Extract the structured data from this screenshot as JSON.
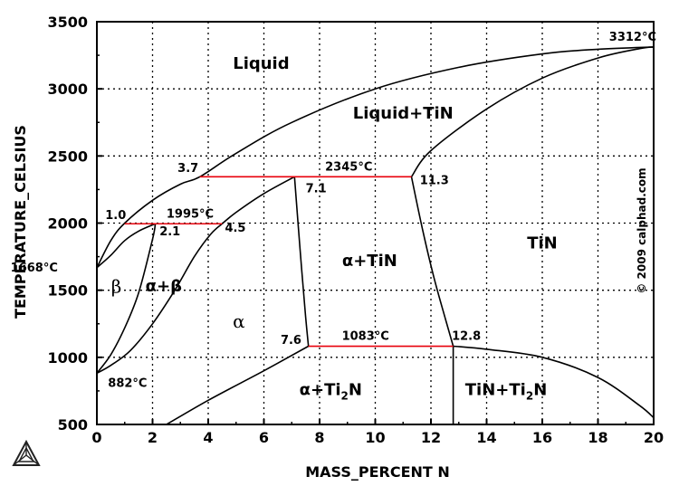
{
  "chart_data": {
    "type": "line",
    "xlabel": "MASS_PERCENT N",
    "ylabel": "TEMPERATURE_CELSIUS",
    "xlim": [
      0,
      20
    ],
    "ylim": [
      500,
      3500
    ],
    "xticks": [
      "0",
      "2",
      "4",
      "6",
      "8",
      "10",
      "12",
      "14",
      "16",
      "18",
      "20"
    ],
    "yticks": [
      "500",
      "1000",
      "1500",
      "2000",
      "2500",
      "3000",
      "3500"
    ],
    "grid": true,
    "credit": "© 2009 calphad.com",
    "phase_boundaries": [
      {
        "name": "liquidus",
        "x": [
          0,
          0.5,
          1.0,
          2,
          3,
          3.7,
          5,
          7,
          10,
          13,
          16,
          18,
          20
        ],
        "y": [
          1668,
          1870,
          2000,
          2170,
          2290,
          2345,
          2520,
          2750,
          3000,
          3160,
          3260,
          3295,
          3312
        ]
      },
      {
        "name": "liquid-tin",
        "x": [
          11.3,
          12,
          14,
          16,
          18,
          19.5,
          20
        ],
        "y": [
          2345,
          2540,
          2850,
          3080,
          3230,
          3300,
          3312
        ]
      },
      {
        "name": "beta-solidus",
        "x": [
          0,
          0.5,
          1,
          1.5,
          2.1
        ],
        "y": [
          1668,
          1760,
          1870,
          1940,
          1995
        ]
      },
      {
        "name": "beta-transus",
        "x": [
          0,
          0.5,
          1,
          1.5,
          2.0,
          2.1
        ],
        "y": [
          882,
          1020,
          1220,
          1480,
          1880,
          1995
        ]
      },
      {
        "name": "alpha-beta",
        "x": [
          0,
          0.5,
          1.2,
          2.0,
          2.8,
          3.5,
          4.1,
          4.5
        ],
        "y": [
          882,
          940,
          1050,
          1250,
          1500,
          1750,
          1920,
          1995
        ]
      },
      {
        "name": "alpha-solidus",
        "x": [
          4.5,
          5,
          6,
          7.1
        ],
        "y": [
          1995,
          2080,
          2220,
          2345
        ]
      },
      {
        "name": "alpha-tin-left",
        "x": [
          7.1,
          7.3,
          7.5,
          7.6
        ],
        "y": [
          2345,
          1800,
          1300,
          1083
        ]
      },
      {
        "name": "tin-left",
        "x": [
          11.3,
          11.7,
          12.1,
          12.5,
          12.8
        ],
        "y": [
          2345,
          1950,
          1600,
          1300,
          1083
        ]
      },
      {
        "name": "alpha-ti2n",
        "x": [
          2.5,
          4,
          6,
          7.6
        ],
        "y": [
          500,
          680,
          900,
          1083
        ]
      },
      {
        "name": "ti2n-tin",
        "x": [
          12.8,
          12.8
        ],
        "y": [
          1083,
          500
        ]
      },
      {
        "name": "tin-ti2n-right",
        "x": [
          12.8,
          14,
          16,
          18,
          19.5,
          20
        ],
        "y": [
          1083,
          1060,
          1000,
          850,
          640,
          550
        ]
      }
    ],
    "invariant_lines": [
      {
        "label": "2345°C",
        "x": [
          3.7,
          11.3
        ],
        "y": [
          2345,
          2345
        ]
      },
      {
        "label": "1995°C",
        "x": [
          1.0,
          4.5
        ],
        "y": [
          1995,
          1995
        ]
      },
      {
        "label": "1083°C",
        "x": [
          7.6,
          12.8
        ],
        "y": [
          1083,
          1083
        ]
      }
    ],
    "annotations": [
      {
        "text": "3312°C",
        "x": 18.4,
        "y": 3360
      },
      {
        "text": "2345°C",
        "x": 8.2,
        "y": 2390
      },
      {
        "text": "3.7",
        "x": 2.9,
        "y": 2380
      },
      {
        "text": "7.1",
        "x": 7.5,
        "y": 2230
      },
      {
        "text": "11.3",
        "x": 11.6,
        "y": 2290
      },
      {
        "text": "1.0",
        "x": 0.3,
        "y": 2030
      },
      {
        "text": "1995°C",
        "x": 2.5,
        "y": 2040
      },
      {
        "text": "2.1",
        "x": 2.25,
        "y": 1910
      },
      {
        "text": "4.5",
        "x": 4.6,
        "y": 1935
      },
      {
        "text": "1668°C",
        "x": -3.1,
        "y": 1640
      },
      {
        "text": "882°C",
        "x": 0.4,
        "y": 780
      },
      {
        "text": "7.6",
        "x": 6.6,
        "y": 1100
      },
      {
        "text": "1083°C",
        "x": 8.8,
        "y": 1130
      },
      {
        "text": "12.8",
        "x": 12.75,
        "y": 1130
      }
    ],
    "regions": [
      {
        "label": "Liquid",
        "x": 5.9,
        "y": 3150
      },
      {
        "label": "Liquid+TiN",
        "x": 11.0,
        "y": 2780
      },
      {
        "label": "α+TiN",
        "x": 9.8,
        "y": 1680
      },
      {
        "label": "TiN",
        "x": 16.0,
        "y": 1810
      },
      {
        "label": "α+β",
        "x": 2.4,
        "y": 1490
      },
      {
        "label": "β",
        "x": 0.7,
        "y": 1480
      },
      {
        "label": "α",
        "x": 5.1,
        "y": 1220
      },
      {
        "label": "α+Ti",
        "sub": "2",
        "tail": "N",
        "x": 8.4,
        "y": 720
      },
      {
        "label": "TiN+Ti",
        "sub": "2",
        "tail": "N",
        "x": 14.7,
        "y": 720
      }
    ]
  }
}
